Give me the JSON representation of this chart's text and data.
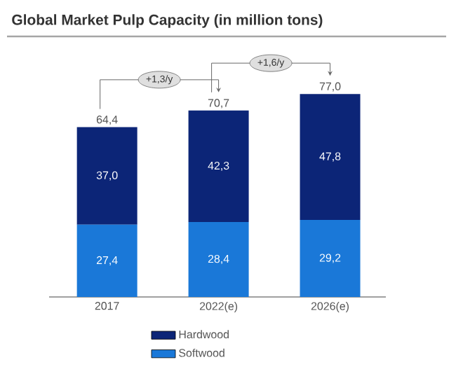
{
  "chart_data": {
    "type": "bar",
    "title": "Global Market Pulp Capacity (in million tons)",
    "categories": [
      "2017",
      "2022(e)",
      "2026(e)"
    ],
    "stacked": true,
    "series": [
      {
        "name": "Softwood",
        "color": "#1a78d8",
        "values": [
          27.4,
          28.4,
          29.2
        ],
        "value_labels": [
          "27,4",
          "28,4",
          "29,2"
        ]
      },
      {
        "name": "Hardwood",
        "color": "#0c2577",
        "values": [
          37.0,
          42.3,
          47.8
        ],
        "value_labels": [
          "37,0",
          "42,3",
          "47,8"
        ]
      }
    ],
    "totals": [
      "64,4",
      "70,7",
      "77,0"
    ],
    "annotations": [
      "+1,3/y",
      "+1,6/y"
    ],
    "legend": "bottom"
  }
}
